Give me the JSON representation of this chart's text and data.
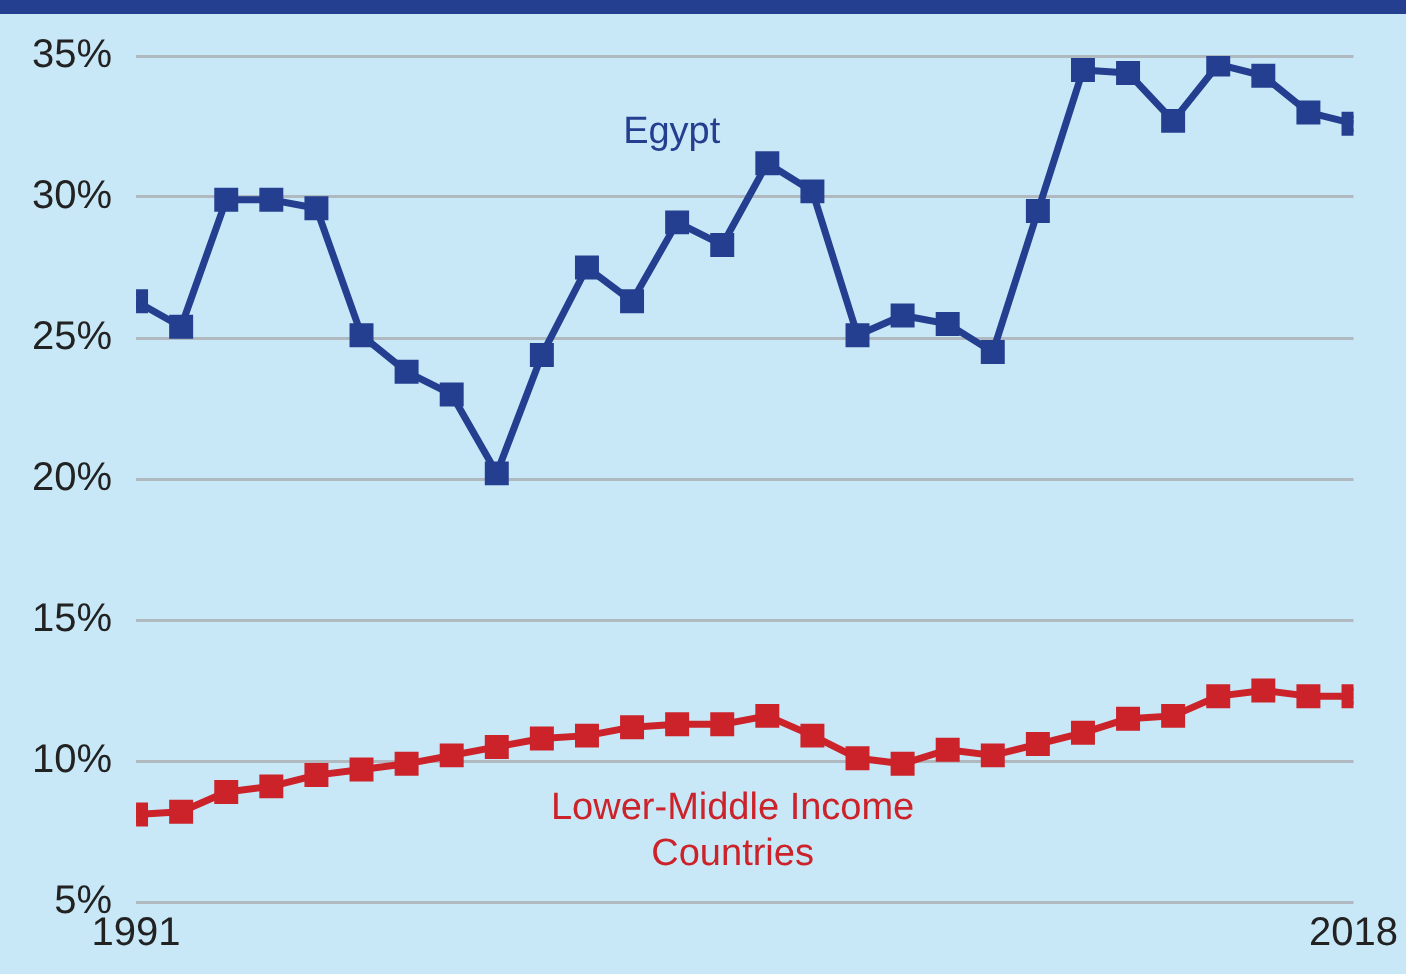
{
  "chart_data": {
    "type": "line",
    "x": [
      1991,
      1992,
      1993,
      1994,
      1995,
      1996,
      1997,
      1998,
      1999,
      2000,
      2001,
      2002,
      2003,
      2004,
      2005,
      2006,
      2007,
      2008,
      2009,
      2010,
      2011,
      2012,
      2013,
      2014,
      2015,
      2016,
      2017,
      2018
    ],
    "series": [
      {
        "name": "Egypt",
        "color": "#243f8f",
        "values": [
          26.3,
          25.4,
          29.9,
          29.9,
          29.6,
          25.1,
          23.8,
          23.0,
          20.2,
          24.4,
          27.5,
          26.3,
          29.1,
          28.3,
          31.2,
          30.2,
          25.1,
          25.8,
          25.5,
          24.5,
          29.5,
          34.5,
          34.4,
          32.7,
          34.7,
          34.3,
          33.0,
          32.6
        ]
      },
      {
        "name": "Lower-Middle Income Countries",
        "color": "#cc2229",
        "values": [
          8.1,
          8.2,
          8.9,
          9.1,
          9.5,
          9.7,
          9.9,
          10.2,
          10.5,
          10.8,
          10.9,
          11.2,
          11.3,
          11.3,
          11.6,
          10.9,
          10.1,
          9.9,
          10.4,
          10.2,
          10.6,
          11.0,
          11.5,
          11.6,
          12.3,
          12.5,
          12.3,
          12.3
        ]
      }
    ],
    "xlim": [
      1991,
      2018
    ],
    "xticks": [
      1991,
      2018
    ],
    "ylim": [
      5,
      35
    ],
    "yticks": [
      {
        "value": 5,
        "label": "5%"
      },
      {
        "value": 10,
        "label": "10%"
      },
      {
        "value": 15,
        "label": "15%"
      },
      {
        "value": 20,
        "label": "20%"
      },
      {
        "value": 25,
        "label": "25%"
      },
      {
        "value": 30,
        "label": "30%"
      },
      {
        "value": 35,
        "label": "35%"
      }
    ],
    "grid": "y",
    "legend": false,
    "marker": "square",
    "line_style": "solid"
  }
}
